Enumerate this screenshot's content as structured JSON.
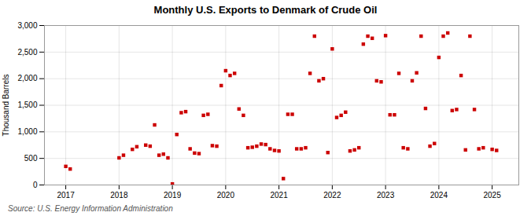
{
  "chart_data": {
    "type": "scatter",
    "title": "Monthly U.S. Exports to Denmark of Crude Oil",
    "ylabel": "Thousand Barrels",
    "source": "Source: U.S. Energy Information Administration",
    "color": "#cc0000",
    "marker": "square",
    "grid": true,
    "xlim": [
      2016.6,
      2025.5
    ],
    "xticks": [
      2017,
      2018,
      2019,
      2020,
      2021,
      2022,
      2023,
      2024,
      2025
    ],
    "ylim": [
      0,
      3000
    ],
    "yticks": [
      0,
      500,
      {
        "value": 1000,
        "label": "1,000"
      },
      {
        "value": 1500,
        "label": "1,500"
      },
      {
        "value": 2000,
        "label": "2,000"
      },
      {
        "value": 2500,
        "label": "2,500"
      },
      {
        "value": 3000,
        "label": "3,000"
      }
    ],
    "x": [
      2017.0,
      2017.083,
      2018.0,
      2018.083,
      2018.25,
      2018.333,
      2018.5,
      2018.583,
      2018.667,
      2018.75,
      2018.833,
      2018.917,
      2019.0,
      2019.083,
      2019.167,
      2019.25,
      2019.333,
      2019.417,
      2019.5,
      2019.583,
      2019.667,
      2019.75,
      2019.833,
      2019.917,
      2020.0,
      2020.083,
      2020.167,
      2020.25,
      2020.333,
      2020.417,
      2020.5,
      2020.583,
      2020.667,
      2020.75,
      2020.833,
      2020.917,
      2021.0,
      2021.083,
      2021.167,
      2021.25,
      2021.333,
      2021.417,
      2021.5,
      2021.583,
      2021.667,
      2021.75,
      2021.833,
      2021.917,
      2022.0,
      2022.083,
      2022.167,
      2022.25,
      2022.333,
      2022.417,
      2022.5,
      2022.583,
      2022.667,
      2022.75,
      2022.833,
      2022.917,
      2023.0,
      2023.083,
      2023.167,
      2023.25,
      2023.333,
      2023.417,
      2023.5,
      2023.583,
      2023.667,
      2023.75,
      2023.833,
      2023.917,
      2024.0,
      2024.083,
      2024.167,
      2024.25,
      2024.333,
      2024.417,
      2024.5,
      2024.583,
      2024.667,
      2024.75,
      2024.833,
      2025.0,
      2025.083
    ],
    "values": [
      350,
      300,
      510,
      560,
      670,
      720,
      750,
      730,
      1130,
      560,
      580,
      510,
      20,
      950,
      1360,
      1380,
      680,
      600,
      590,
      1310,
      1330,
      740,
      730,
      1870,
      2150,
      2060,
      2100,
      1430,
      1310,
      700,
      710,
      730,
      770,
      760,
      680,
      650,
      640,
      120,
      1330,
      1330,
      680,
      680,
      700,
      2100,
      2800,
      1960,
      2000,
      610,
      2560,
      1270,
      1310,
      1370,
      640,
      660,
      700,
      2650,
      2800,
      2760,
      1960,
      1940,
      2810,
      1320,
      1320,
      2100,
      700,
      680,
      1960,
      2110,
      2800,
      1440,
      730,
      780,
      2400,
      2800,
      2860,
      1400,
      1420,
      2060,
      660,
      2800,
      1420,
      680,
      700,
      670,
      650
    ]
  }
}
